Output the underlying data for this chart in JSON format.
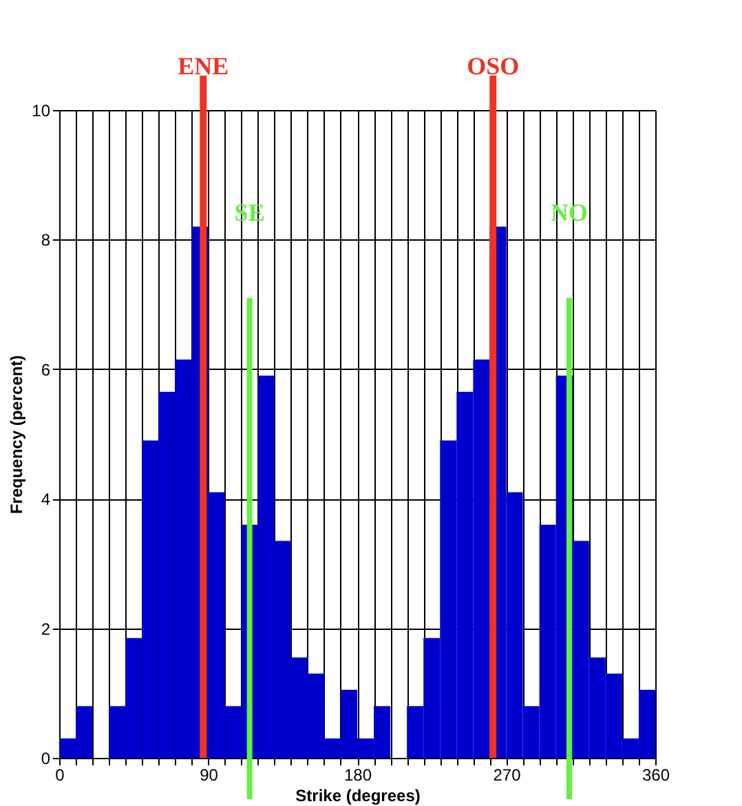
{
  "chart_data": {
    "type": "histogram",
    "xlabel": "Strike (degrees)",
    "ylabel": "Frequency (percent)",
    "bins": [
      0,
      10,
      20,
      30,
      40,
      50,
      60,
      70,
      80,
      90,
      100,
      110,
      120,
      130,
      140,
      150,
      160,
      170,
      180,
      190,
      200,
      210,
      220,
      230,
      240,
      250,
      260,
      270,
      280,
      290,
      300,
      310,
      320,
      330,
      340,
      350,
      360
    ],
    "values": [
      0.3,
      0.8,
      0,
      0.8,
      1.85,
      4.9,
      5.65,
      6.15,
      8.2,
      4.1,
      0.8,
      3.6,
      5.9,
      3.35,
      1.55,
      1.3,
      0.3,
      1.05,
      0.3,
      0.8,
      0,
      0.8,
      1.85,
      4.9,
      5.65,
      6.15,
      8.2,
      4.1,
      0.8,
      3.6,
      5.9,
      3.35,
      1.55,
      1.3,
      0.3,
      1.05
    ],
    "color": "#0000cc",
    "xlim": [
      0,
      360
    ],
    "xticks": [
      0,
      {
        "value": 10,
        "label": null
      },
      {
        "value": 20,
        "label": null
      },
      {
        "value": 30,
        "label": null
      },
      {
        "value": 40,
        "label": null
      },
      {
        "value": 50,
        "label": null
      },
      {
        "value": 60,
        "label": null
      },
      {
        "value": 70,
        "label": null
      },
      {
        "value": 80,
        "label": null
      },
      90,
      {
        "value": 100,
        "label": null
      },
      {
        "value": 110,
        "label": null
      },
      {
        "value": 120,
        "label": null
      },
      {
        "value": 130,
        "label": null
      },
      {
        "value": 140,
        "label": null
      },
      {
        "value": 150,
        "label": null
      },
      {
        "value": 160,
        "label": null
      },
      {
        "value": 170,
        "label": null
      },
      180,
      {
        "value": 190,
        "label": null
      },
      {
        "value": 200,
        "label": null
      },
      {
        "value": 210,
        "label": null
      },
      {
        "value": 220,
        "label": null
      },
      {
        "value": 230,
        "label": null
      },
      {
        "value": 240,
        "label": null
      },
      {
        "value": 250,
        "label": null
      },
      {
        "value": 260,
        "label": null
      },
      270,
      {
        "value": 280,
        "label": null
      },
      {
        "value": 290,
        "label": null
      },
      {
        "value": 300,
        "label": null
      },
      {
        "value": 310,
        "label": null
      },
      {
        "value": 320,
        "label": null
      },
      {
        "value": 330,
        "label": null
      },
      {
        "value": 340,
        "label": null
      },
      {
        "value": 350,
        "label": null
      },
      360
    ],
    "ylim": [
      0,
      10
    ],
    "yticks": [
      0,
      2,
      4,
      6,
      8,
      10
    ],
    "grid": true,
    "ref_lines": [
      {
        "axis": "x",
        "value": 87,
        "label": "ENE",
        "color": "#ee3322"
      },
      {
        "axis": "x",
        "value": 262,
        "label": "OSO",
        "color": "#ee3322"
      },
      {
        "axis": "x",
        "value": 115,
        "label": "SE",
        "color": "#66ee44"
      },
      {
        "axis": "x",
        "value": 308,
        "label": "NO",
        "color": "#66ee44"
      }
    ]
  }
}
